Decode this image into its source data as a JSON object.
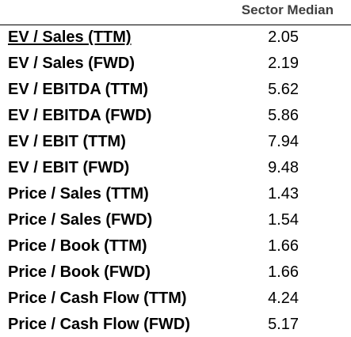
{
  "header": {
    "column_label": "Sector Median"
  },
  "rows": [
    {
      "metric": "EV / Sales (TTM)",
      "value": "2.05",
      "link": true
    },
    {
      "metric": "EV / Sales (FWD)",
      "value": "2.19"
    },
    {
      "metric": "EV / EBITDA (TTM)",
      "value": "5.62"
    },
    {
      "metric": "EV / EBITDA (FWD)",
      "value": "5.86"
    },
    {
      "metric": "EV / EBIT (TTM)",
      "value": "7.94"
    },
    {
      "metric": "EV / EBIT (FWD)",
      "value": "9.48"
    },
    {
      "metric": "Price / Sales (TTM)",
      "value": "1.43"
    },
    {
      "metric": "Price / Sales (FWD)",
      "value": "1.54"
    },
    {
      "metric": "Price / Book (TTM)",
      "value": "1.66"
    },
    {
      "metric": "Price / Book (FWD)",
      "value": "1.66"
    },
    {
      "metric": "Price / Cash Flow (TTM)",
      "value": "4.24"
    },
    {
      "metric": "Price / Cash Flow (FWD)",
      "value": "5.17"
    }
  ]
}
